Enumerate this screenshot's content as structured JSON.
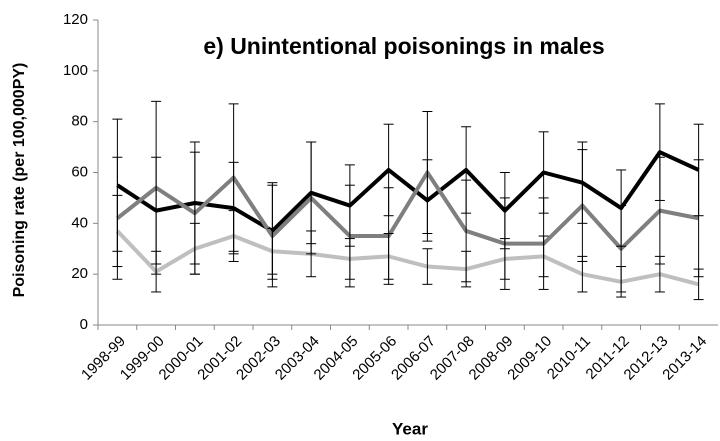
{
  "chart_data": {
    "type": "line",
    "title": "e) Unintentional poisonings in males",
    "y_label": "Poisoning rate (per 100,000PY)",
    "x_label": "Year",
    "categories": [
      "1998-99",
      "1999-00",
      "2000-01",
      "2001-02",
      "2002-03",
      "2003-04",
      "2004-05",
      "2005-06",
      "2006-07",
      "2007-08",
      "2008-09",
      "2009-10",
      "2010-11",
      "2011-12",
      "2012-13",
      "2013-14"
    ],
    "series": [
      {
        "color": "#000000",
        "values": [
          55,
          45,
          48,
          46,
          37,
          52,
          47,
          61,
          49,
          61,
          45,
          60,
          56,
          46,
          68,
          61
        ],
        "errors": [
          26,
          21,
          24,
          18,
          19,
          20,
          16,
          18,
          16,
          17,
          15,
          16,
          16,
          15,
          19,
          18
        ]
      },
      {
        "color": "#7f7f7f",
        "values": [
          42,
          54,
          44,
          58,
          35,
          50,
          35,
          35,
          60,
          37,
          32,
          32,
          47,
          30,
          45,
          42
        ],
        "errors": [
          24,
          34,
          24,
          29,
          20,
          22,
          20,
          19,
          24,
          20,
          18,
          18,
          22,
          17,
          21,
          23
        ]
      },
      {
        "color": "#bfbfbf",
        "values": [
          37,
          21,
          30,
          35,
          29,
          28,
          26,
          27,
          23,
          22,
          26,
          27,
          20,
          17,
          20,
          16
        ],
        "errors": [
          14,
          8,
          10,
          10,
          9,
          9,
          8,
          9,
          7,
          7,
          8,
          8,
          7,
          6,
          7,
          6
        ]
      }
    ],
    "ylim": [
      0,
      120
    ],
    "yticks": [
      0,
      20,
      40,
      60,
      80,
      100,
      120
    ],
    "grid": false
  }
}
